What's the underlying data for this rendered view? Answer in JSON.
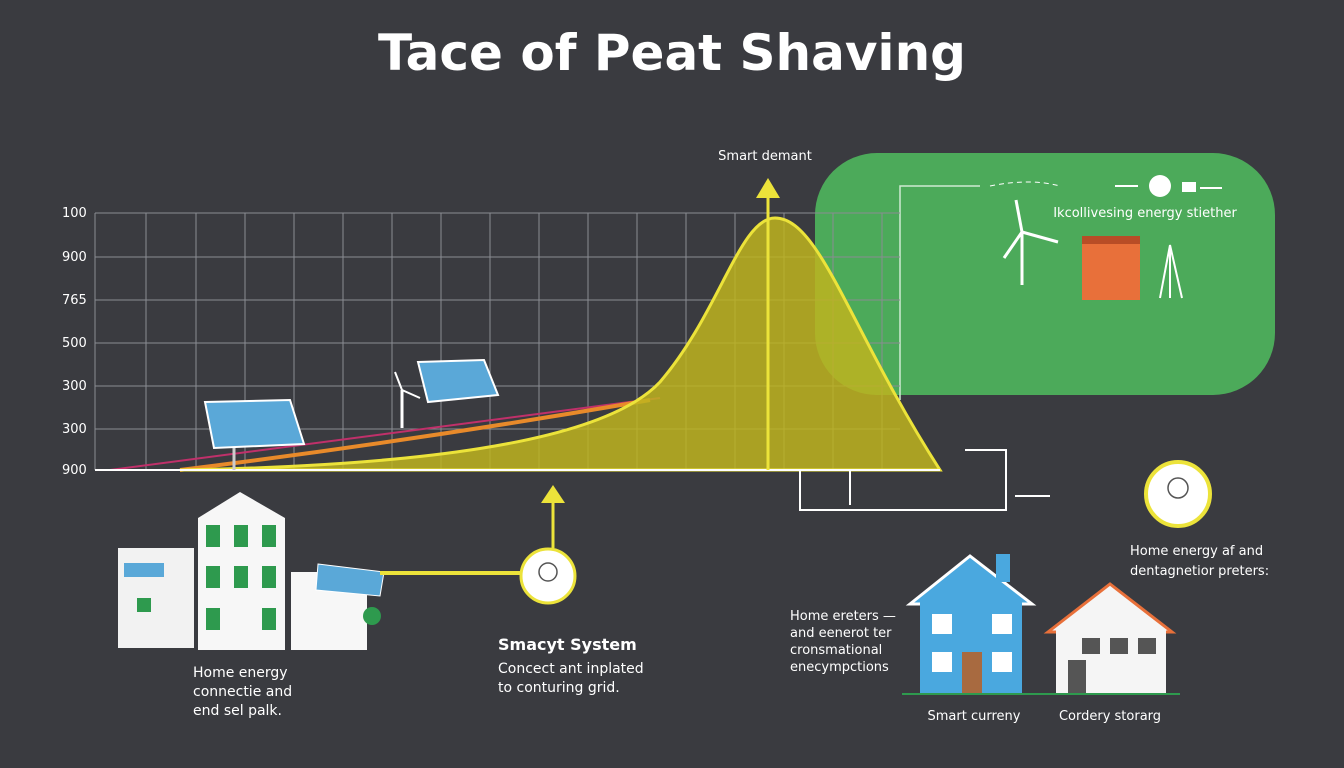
{
  "title": "Tace of Peat Shaving",
  "chart": {
    "axis_labels": [
      "100",
      "900",
      "765",
      "500",
      "300",
      "300",
      "900"
    ],
    "peak_label": "Smart demant"
  },
  "panel": {
    "label": "Ikcollivesing energy stiether"
  },
  "left_block": {
    "lines": [
      "Home energy",
      "connectie and",
      "end sel palk."
    ]
  },
  "middle_block": {
    "heading": "Smacyt System",
    "lines": [
      "Concect ant inplated",
      "to conturing grid."
    ]
  },
  "right_top": {
    "lines": [
      "Home energy af and",
      "dentagnetior preters:"
    ]
  },
  "right_mid": {
    "lines": [
      "Home ereters —",
      "and eenerot ter",
      "cronsmational",
      "enecympctions"
    ]
  },
  "houses": {
    "labels": [
      "Smart curreny",
      "Cordery storarg"
    ]
  }
}
